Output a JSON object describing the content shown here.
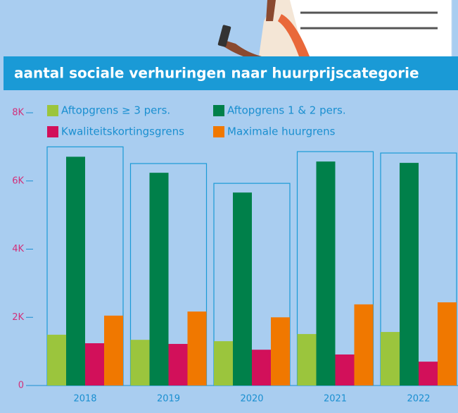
{
  "chart_data": {
    "type": "bar",
    "title": "aantal sociale verhuringen naar huurprijscategorie",
    "categories": [
      "2018",
      "2019",
      "2020",
      "2021",
      "2022"
    ],
    "series": [
      {
        "name": "Aftopgrens ≥ 3 pers.",
        "color": "#9bc53d",
        "values": [
          1490,
          1340,
          1300,
          1510,
          1570
        ]
      },
      {
        "name": "Aftopgrens 1 & 2 pers.",
        "color": "#00804a",
        "values": [
          6710,
          6240,
          5660,
          6570,
          6530
        ]
      },
      {
        "name": "Kwaliteitskortingsgrens",
        "color": "#d2105a",
        "values": [
          1240,
          1220,
          1050,
          910,
          700
        ]
      },
      {
        "name": "Maximale huurgrens",
        "color": "#f07800",
        "values": [
          2050,
          2170,
          2000,
          2380,
          2440
        ]
      }
    ],
    "group_totals": [
      7000,
      6510,
      5930,
      6860,
      6820
    ],
    "ylim": [
      0,
      8000
    ],
    "yticks": [
      {
        "value": 0,
        "label": "0"
      },
      {
        "value": 2000,
        "label": "2K"
      },
      {
        "value": 4000,
        "label": "4K"
      },
      {
        "value": 6000,
        "label": "6K"
      },
      {
        "value": 8000,
        "label": "8K"
      }
    ],
    "legend": "top"
  }
}
